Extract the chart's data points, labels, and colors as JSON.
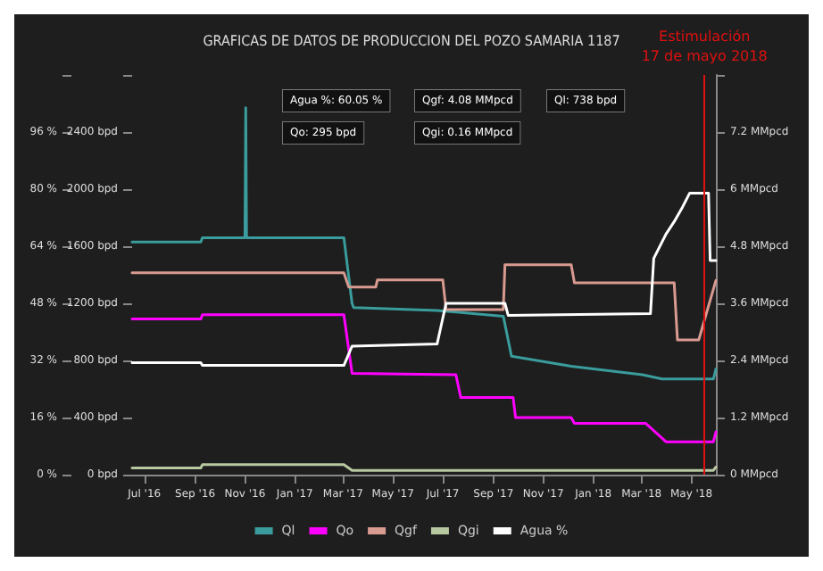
{
  "chart_data": {
    "type": "line",
    "title": "GRAFICAS DE DATOS DE PRODUCCION DEL POZO SAMARIA 1187",
    "xlim": [
      "2016-06-16",
      "2018-05-31"
    ],
    "xticks": [
      {
        "value": "2016-07-01",
        "label": "Jul '16"
      },
      {
        "value": "2016-09-01",
        "label": "Sep '16"
      },
      {
        "value": "2016-11-01",
        "label": "Nov '16"
      },
      {
        "value": "2017-01-01",
        "label": "Jan '17"
      },
      {
        "value": "2017-03-01",
        "label": "Mar '17"
      },
      {
        "value": "2017-05-01",
        "label": "May '17"
      },
      {
        "value": "2017-07-01",
        "label": "Jul '17"
      },
      {
        "value": "2017-09-01",
        "label": "Sep '17"
      },
      {
        "value": "2017-11-01",
        "label": "Nov '17"
      },
      {
        "value": "2018-01-01",
        "label": "Jan '18"
      },
      {
        "value": "2018-03-01",
        "label": "Mar '18"
      },
      {
        "value": "2018-05-01",
        "label": "May '18"
      }
    ],
    "ylim": [
      0,
      2800
    ],
    "yticks": [
      {
        "value": 0,
        "label": "0 bpd"
      },
      {
        "value": 400,
        "label": "400 bpd"
      },
      {
        "value": 800,
        "label": "800 bpd"
      },
      {
        "value": 1200,
        "label": "1200 bpd"
      },
      {
        "value": 1600,
        "label": "1600 bpd"
      },
      {
        "value": 2000,
        "label": "2000 bpd"
      },
      {
        "value": 2400,
        "label": "2400 bpd"
      },
      {
        "value": 2800,
        "label": null
      }
    ],
    "y2lim": [
      0,
      8.4
    ],
    "y2ticks": [
      {
        "value": 0,
        "label": "0 MMpcd"
      },
      {
        "value": 1.2,
        "label": "1.2 MMpcd"
      },
      {
        "value": 2.4,
        "label": "2.4 MMpcd"
      },
      {
        "value": 3.6,
        "label": "3.6 MMpcd"
      },
      {
        "value": 4.8,
        "label": "4.8 MMpcd"
      },
      {
        "value": 6,
        "label": "6 MMpcd"
      },
      {
        "value": 7.2,
        "label": "7.2 MMpcd"
      },
      {
        "value": 8.4,
        "label": null
      }
    ],
    "y3lim": [
      0,
      112
    ],
    "y3ticks": [
      {
        "value": 0,
        "label": "0 %"
      },
      {
        "value": 16,
        "label": "16 %"
      },
      {
        "value": 32,
        "label": "32 %"
      },
      {
        "value": 48,
        "label": "48 %"
      },
      {
        "value": 64,
        "label": "64 %"
      },
      {
        "value": 80,
        "label": "80 %"
      },
      {
        "value": 96,
        "label": "96 %"
      },
      {
        "value": 112,
        "label": null
      }
    ],
    "grid": false,
    "legend": "bottom",
    "marker": "none",
    "line_style": "solid",
    "ref_lines": [
      {
        "axis": "x",
        "value": "2018-05-17",
        "label": "Estimulación\n17 de mayo 2018",
        "color": "#e01010"
      }
    ],
    "annotations": [
      "Agua %: 60.05 %",
      "Qgf: 4.08 MMpcd",
      "Ql: 738 bpd",
      "Qo: 295 bpd",
      "Qgi: 0.16 MMpcd"
    ],
    "series": [
      {
        "name": "Ql",
        "color": "#3a9c9c",
        "x": [
          "2016-06-16",
          "2016-09-08",
          "2016-09-10",
          "2016-11-01",
          "2016-11-02",
          "2016-11-03",
          "2017-03-02",
          "2017-03-12",
          "2017-03-14",
          "2017-06-24",
          "2017-09-13",
          "2017-09-23",
          "2017-12-05",
          "2018-03-02",
          "2018-03-26",
          "2018-05-28",
          "2018-05-31"
        ],
        "values": [
          1630,
          1630,
          1660,
          1660,
          2570,
          1660,
          1660,
          1200,
          1170,
          1150,
          1110,
          830,
          760,
          700,
          670,
          670,
          740
        ]
      },
      {
        "name": "Qo",
        "color": "#ff00ff",
        "x": [
          "2016-06-16",
          "2016-09-08",
          "2016-09-10",
          "2017-03-02",
          "2017-03-12",
          "2017-07-17",
          "2017-07-23",
          "2017-09-25",
          "2017-09-28",
          "2017-12-05",
          "2017-12-09",
          "2018-03-06",
          "2018-03-31",
          "2018-05-28",
          "2018-05-31"
        ],
        "values": [
          1090,
          1090,
          1120,
          1120,
          710,
          700,
          540,
          540,
          400,
          400,
          360,
          360,
          230,
          230,
          300
        ]
      },
      {
        "name": "Qgf",
        "color": "#d99a90",
        "axis": "y2",
        "x": [
          "2016-06-16",
          "2017-03-02",
          "2017-03-08",
          "2017-04-10",
          "2017-04-12",
          "2017-07-01",
          "2017-07-05",
          "2017-09-13",
          "2017-09-15",
          "2017-12-05",
          "2017-12-09",
          "2018-04-10",
          "2018-04-14",
          "2018-05-10",
          "2018-05-31"
        ],
        "values": [
          4.24,
          4.24,
          3.94,
          3.94,
          4.09,
          4.09,
          3.47,
          3.47,
          4.41,
          4.41,
          4.03,
          4.03,
          2.83,
          2.83,
          4.08
        ]
      },
      {
        "name": "Qgi",
        "color": "#b8c8a0",
        "axis": "y2",
        "x": [
          "2016-06-16",
          "2016-09-08",
          "2016-09-10",
          "2017-03-02",
          "2017-03-12",
          "2018-05-28",
          "2018-05-31"
        ],
        "values": [
          0.14,
          0.14,
          0.21,
          0.21,
          0.09,
          0.09,
          0.16
        ]
      },
      {
        "name": "Agua %",
        "color": "#ffffff",
        "axis": "y3",
        "x": [
          "2016-06-16",
          "2016-09-08",
          "2016-09-10",
          "2017-03-02",
          "2017-03-12",
          "2017-06-24",
          "2017-07-05",
          "2017-09-15",
          "2017-09-19",
          "2018-03-12",
          "2018-03-16",
          "2018-03-31",
          "2018-04-10",
          "2018-04-20",
          "2018-04-29",
          "2018-05-22",
          "2018-05-24",
          "2018-05-31"
        ],
        "values": [
          31.4,
          31.4,
          30.6,
          30.6,
          36,
          36.6,
          48,
          48,
          44.6,
          45.1,
          60.6,
          67.4,
          70.9,
          74.9,
          78.9,
          78.9,
          60,
          60
        ]
      }
    ]
  }
}
